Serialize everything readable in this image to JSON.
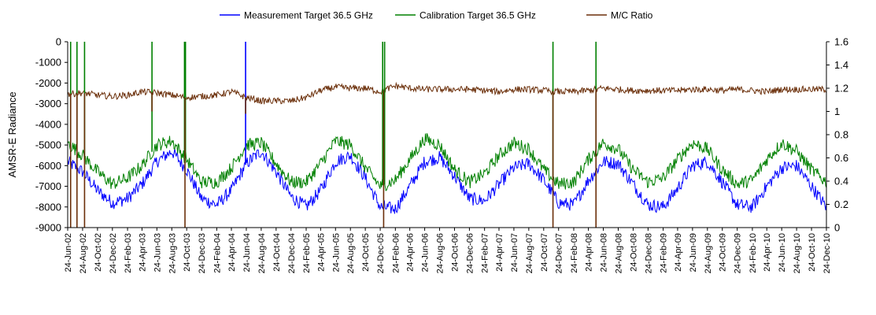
{
  "chart_data": {
    "type": "line",
    "title": "",
    "ylabel": "AMSR-E Radiance",
    "y2label": "",
    "ylim": [
      -9000,
      0
    ],
    "y2lim": [
      0,
      1.6
    ],
    "yticks": [
      "0",
      "-1000",
      "-2000",
      "-3000",
      "-4000",
      "-5000",
      "-6000",
      "-7000",
      "-8000",
      "-9000"
    ],
    "y2ticks": [
      "1.6",
      "1.4",
      "1.2",
      "1",
      "0.8",
      "0.6",
      "0.4",
      "0.2",
      "0"
    ],
    "x_start": "2002-06-24",
    "x_end": "2010-12-24",
    "xticks": [
      "24-Jun-02",
      "24-Aug-02",
      "24-Oct-02",
      "24-Dec-02",
      "24-Feb-03",
      "24-Apr-03",
      "24-Jun-03",
      "24-Aug-03",
      "24-Oct-03",
      "24-Dec-03",
      "24-Feb-04",
      "24-Apr-04",
      "24-Jun-04",
      "24-Aug-04",
      "24-Oct-04",
      "24-Dec-04",
      "24-Feb-05",
      "24-Apr-05",
      "24-Jun-05",
      "24-Aug-05",
      "24-Oct-05",
      "24-Dec-05",
      "24-Feb-06",
      "24-Apr-06",
      "24-Jun-06",
      "24-Aug-06",
      "24-Oct-06",
      "24-Dec-06",
      "24-Feb-07",
      "24-Apr-07",
      "24-Jun-07",
      "24-Aug-07",
      "24-Oct-07",
      "24-Dec-07",
      "24-Feb-08",
      "24-Apr-08",
      "24-Jun-08",
      "24-Aug-08",
      "24-Oct-08",
      "24-Dec-08",
      "24-Feb-09",
      "24-Apr-09",
      "24-Jun-09",
      "24-Aug-09",
      "24-Oct-09",
      "24-Dec-09",
      "24-Feb-10",
      "24-Apr-10",
      "24-Jun-10",
      "24-Aug-10",
      "24-Oct-10",
      "24-Dec-10"
    ],
    "legend_position": "top",
    "grid": false,
    "series": [
      {
        "name": "Measurement Target 36.5 GHz",
        "color": "#0000ff",
        "axis": "left",
        "x": [
          "2002-06-24",
          "2002-08-24",
          "2002-10-24",
          "2002-12-24",
          "2003-02-24",
          "2003-04-24",
          "2003-06-24",
          "2003-08-24",
          "2003-10-24",
          "2003-12-24",
          "2004-02-24",
          "2004-04-24",
          "2004-06-24",
          "2004-08-24",
          "2004-10-24",
          "2004-12-24",
          "2005-02-24",
          "2005-04-24",
          "2005-06-24",
          "2005-08-24",
          "2005-10-24",
          "2005-12-24",
          "2006-02-24",
          "2006-04-24",
          "2006-06-24",
          "2006-08-24",
          "2006-10-24",
          "2006-12-24",
          "2007-02-24",
          "2007-04-24",
          "2007-06-24",
          "2007-08-24",
          "2007-10-24",
          "2007-12-24",
          "2008-02-24",
          "2008-04-24",
          "2008-06-24",
          "2008-08-24",
          "2008-10-24",
          "2008-12-24",
          "2009-02-24",
          "2009-04-24",
          "2009-06-24",
          "2009-08-24",
          "2009-10-24",
          "2009-12-24",
          "2010-02-24",
          "2010-04-24",
          "2010-06-24",
          "2010-08-24",
          "2010-10-24",
          "2010-12-24"
        ],
        "values": [
          -5800,
          -6300,
          -7200,
          -7800,
          -7600,
          -6900,
          -5800,
          -5300,
          -6200,
          -7600,
          -7900,
          -7200,
          -5900,
          -5300,
          -6300,
          -7500,
          -8000,
          -7200,
          -5800,
          -5500,
          -6600,
          -8000,
          -8100,
          -7000,
          -5800,
          -5600,
          -6500,
          -7600,
          -7700,
          -6900,
          -6100,
          -5900,
          -6700,
          -7800,
          -7900,
          -6700,
          -5800,
          -5900,
          -6900,
          -7900,
          -8000,
          -7100,
          -6000,
          -5800,
          -6800,
          -7900,
          -8000,
          -7000,
          -6100,
          -6000,
          -7000,
          -8000
        ]
      },
      {
        "name": "Calibration Target 36.5 GHz",
        "color": "#008000",
        "axis": "left",
        "x": [
          "2002-06-24",
          "2002-08-24",
          "2002-10-24",
          "2002-12-24",
          "2003-02-24",
          "2003-04-24",
          "2003-06-24",
          "2003-08-24",
          "2003-10-24",
          "2003-12-24",
          "2004-02-24",
          "2004-04-24",
          "2004-06-24",
          "2004-08-24",
          "2004-10-24",
          "2004-12-24",
          "2005-02-24",
          "2005-04-24",
          "2005-06-24",
          "2005-08-24",
          "2005-10-24",
          "2005-12-24",
          "2006-02-24",
          "2006-04-24",
          "2006-06-24",
          "2006-08-24",
          "2006-10-24",
          "2006-12-24",
          "2007-02-24",
          "2007-04-24",
          "2007-06-24",
          "2007-08-24",
          "2007-10-24",
          "2007-12-24",
          "2008-02-24",
          "2008-04-24",
          "2008-06-24",
          "2008-08-24",
          "2008-10-24",
          "2008-12-24",
          "2009-02-24",
          "2009-04-24",
          "2009-06-24",
          "2009-08-24",
          "2009-10-24",
          "2009-12-24",
          "2010-02-24",
          "2010-04-24",
          "2010-06-24",
          "2010-08-24",
          "2010-10-24",
          "2010-12-24"
        ],
        "values": [
          -4900,
          -5500,
          -6300,
          -6900,
          -6600,
          -6000,
          -5000,
          -4800,
          -5700,
          -6800,
          -6800,
          -6100,
          -5000,
          -4900,
          -5900,
          -6800,
          -6800,
          -5900,
          -4800,
          -5000,
          -6100,
          -7000,
          -6700,
          -5700,
          -4700,
          -5000,
          -6200,
          -6800,
          -6400,
          -5500,
          -4900,
          -5200,
          -6200,
          -6900,
          -6800,
          -5700,
          -4900,
          -5200,
          -6200,
          -6800,
          -6600,
          -5700,
          -4900,
          -5200,
          -6200,
          -6900,
          -6700,
          -5700,
          -4900,
          -5300,
          -6200,
          -6800
        ]
      },
      {
        "name": "M/C Ratio",
        "color": "#6b2f0a",
        "axis": "right",
        "x": [
          "2002-06-24",
          "2002-08-24",
          "2002-10-24",
          "2002-12-24",
          "2003-02-24",
          "2003-04-24",
          "2003-06-24",
          "2003-08-24",
          "2003-10-24",
          "2003-12-24",
          "2004-02-24",
          "2004-04-24",
          "2004-06-24",
          "2004-08-24",
          "2004-10-24",
          "2004-12-24",
          "2005-02-24",
          "2005-04-24",
          "2005-06-24",
          "2005-08-24",
          "2005-10-24",
          "2005-12-24",
          "2006-02-24",
          "2006-04-24",
          "2006-06-24",
          "2006-08-24",
          "2006-10-24",
          "2006-12-24",
          "2007-02-24",
          "2007-04-24",
          "2007-06-24",
          "2007-08-24",
          "2007-10-24",
          "2007-12-24",
          "2008-02-24",
          "2008-04-24",
          "2008-06-24",
          "2008-08-24",
          "2008-10-24",
          "2008-12-24",
          "2009-02-24",
          "2009-04-24",
          "2009-06-24",
          "2009-08-24",
          "2009-10-24",
          "2009-12-24",
          "2010-02-24",
          "2010-04-24",
          "2010-06-24",
          "2010-08-24",
          "2010-10-24",
          "2010-12-24"
        ],
        "values": [
          1.15,
          1.16,
          1.14,
          1.13,
          1.14,
          1.17,
          1.16,
          1.14,
          1.12,
          1.13,
          1.14,
          1.17,
          1.12,
          1.09,
          1.09,
          1.09,
          1.12,
          1.18,
          1.21,
          1.2,
          1.2,
          1.17,
          1.22,
          1.2,
          1.19,
          1.19,
          1.19,
          1.19,
          1.18,
          1.17,
          1.19,
          1.19,
          1.18,
          1.17,
          1.17,
          1.18,
          1.2,
          1.19,
          1.18,
          1.18,
          1.18,
          1.18,
          1.19,
          1.19,
          1.18,
          1.19,
          1.18,
          1.17,
          1.19,
          1.19,
          1.19,
          1.19
        ]
      }
    ],
    "spikes": [
      {
        "date": "2002-07-06",
        "series": "Calibration Target 36.5 GHz",
        "to": 0
      },
      {
        "date": "2002-08-01",
        "series": "Calibration Target 36.5 GHz",
        "to": 0
      },
      {
        "date": "2002-09-01",
        "series": "Calibration Target 36.5 GHz",
        "to": 0
      },
      {
        "date": "2003-06-04",
        "series": "Calibration Target 36.5 GHz",
        "to": 0
      },
      {
        "date": "2003-10-15",
        "series": "Calibration Target 36.5 GHz",
        "to": 0
      },
      {
        "date": "2003-10-19",
        "series": "Calibration Target 36.5 GHz",
        "to": 0
      },
      {
        "date": "2004-06-21",
        "series": "Measurement Target 36.5 GHz",
        "to": 0
      },
      {
        "date": "2006-01-03",
        "series": "Calibration Target 36.5 GHz",
        "to": 0
      },
      {
        "date": "2006-01-11",
        "series": "Calibration Target 36.5 GHz",
        "to": 0
      },
      {
        "date": "2007-12-01",
        "series": "Calibration Target 36.5 GHz",
        "to": 0
      },
      {
        "date": "2008-05-25",
        "series": "Calibration Target 36.5 GHz",
        "to": 0
      },
      {
        "date": "2002-07-06",
        "series": "M/C Ratio",
        "to": 0
      },
      {
        "date": "2002-08-01",
        "series": "M/C Ratio",
        "to": 0
      },
      {
        "date": "2002-09-01",
        "series": "M/C Ratio",
        "to": 0
      },
      {
        "date": "2003-06-04",
        "series": "M/C Ratio",
        "to": 1.0
      },
      {
        "date": "2003-10-17",
        "series": "M/C Ratio",
        "to": 0
      },
      {
        "date": "2004-06-21",
        "series": "M/C Ratio",
        "to": 0.98
      },
      {
        "date": "2006-01-07",
        "series": "M/C Ratio",
        "to": 0
      },
      {
        "date": "2007-12-01",
        "series": "M/C Ratio",
        "to": 0
      },
      {
        "date": "2008-05-25",
        "series": "M/C Ratio",
        "to": 0
      }
    ]
  }
}
